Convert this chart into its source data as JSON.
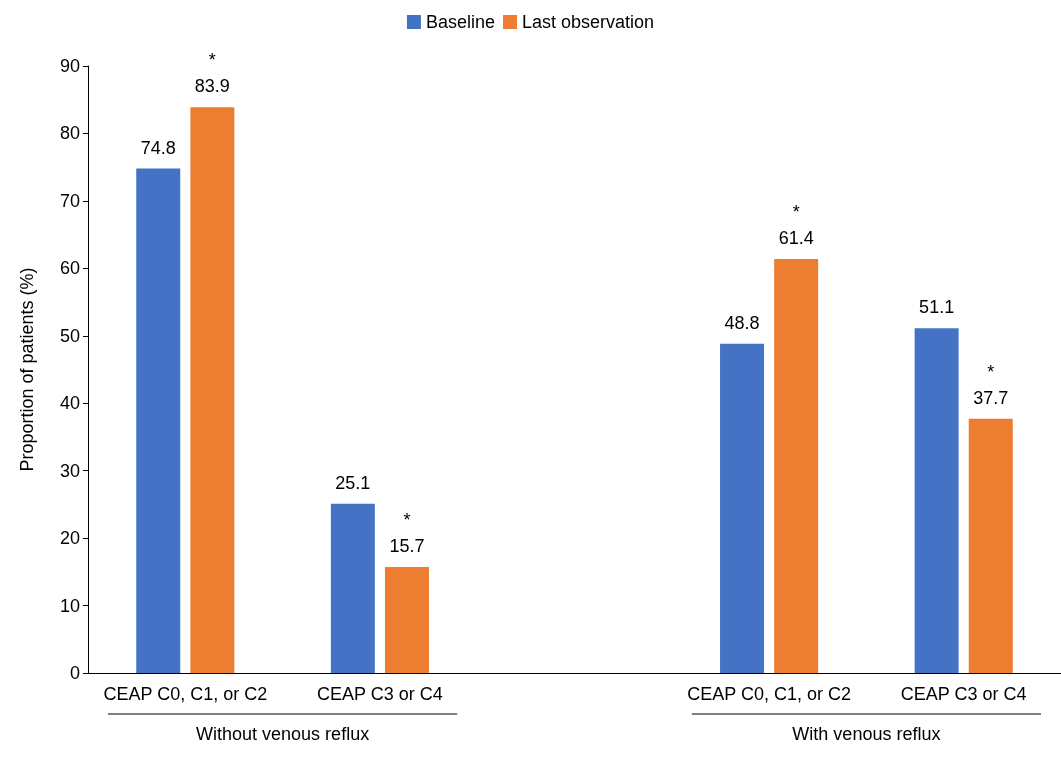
{
  "chart_data": {
    "type": "bar",
    "ylabel": "Proportion of patients (%)",
    "categories": [
      "CEAP C0, C1, or C2",
      "CEAP C3 or C4",
      null,
      "CEAP C0, C1, or C2",
      "CEAP C3 or C4"
    ],
    "series": [
      {
        "name": "Baseline",
        "color": "#4472c4",
        "values": [
          74.8,
          25.1,
          null,
          48.8,
          51.1
        ],
        "value_labels": [
          "74.8",
          "25.1",
          null,
          "48.8",
          "51.1"
        ]
      },
      {
        "name": "Last observation",
        "color": "#ed7d31",
        "values": [
          83.9,
          15.7,
          null,
          61.4,
          37.7
        ],
        "value_labels": [
          "*\n83.9",
          "*\n15.7",
          null,
          "*\n61.4",
          "*\n37.7"
        ]
      }
    ],
    "ylim": [
      0,
      90
    ],
    "yticks": [
      0,
      10,
      20,
      30,
      40,
      50,
      60,
      70,
      80,
      90
    ],
    "grid": false,
    "legend": "top",
    "annotations": [
      "Without venous reflux",
      "With venous reflux"
    ]
  }
}
